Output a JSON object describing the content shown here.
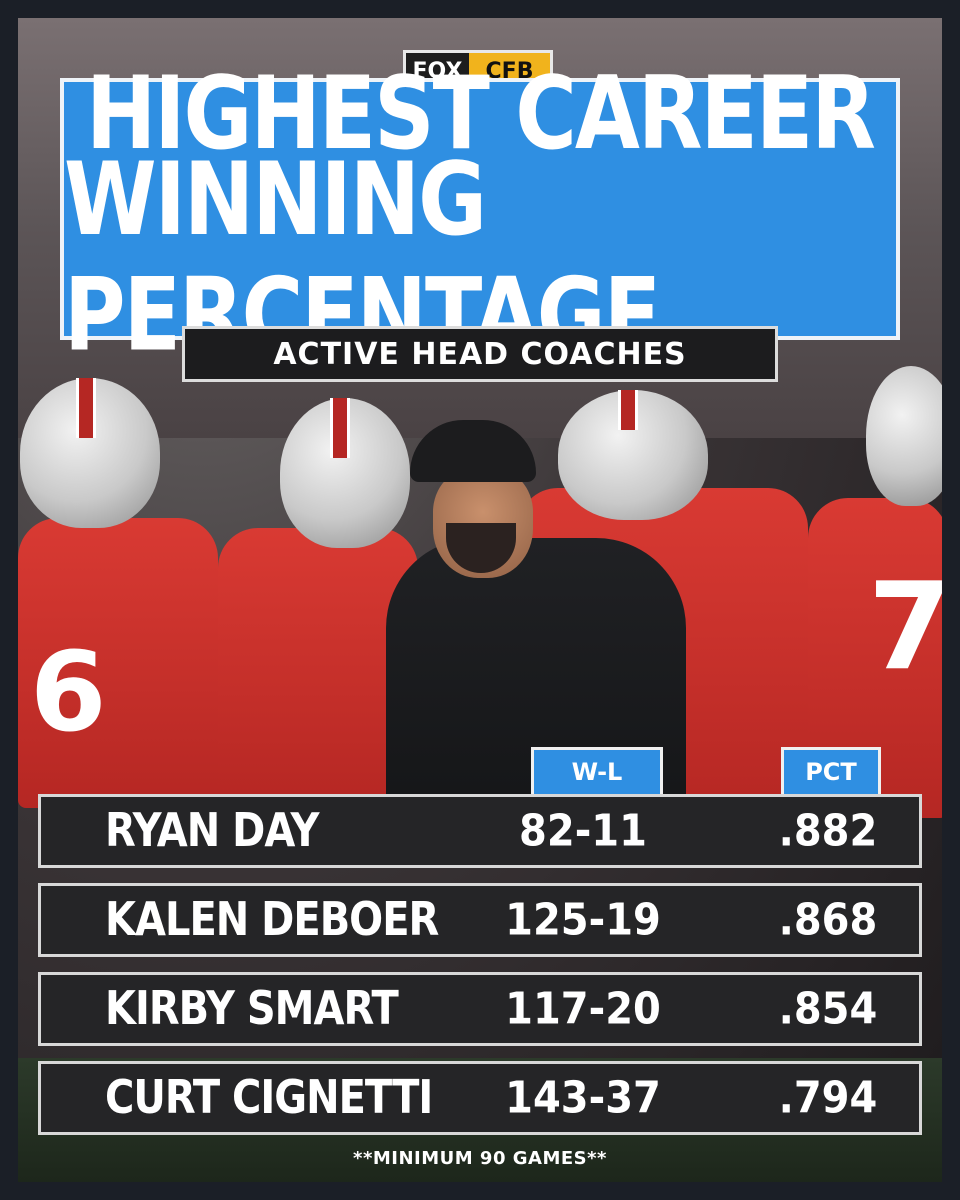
{
  "brand": {
    "fox": "FOX",
    "cfb": "CFB"
  },
  "header": {
    "title_line1": "HIGHEST CAREER",
    "title_line2": "WINNING PERCENTAGE",
    "subtitle": "ACTIVE HEAD COACHES"
  },
  "table": {
    "columns": {
      "wl": "W-L",
      "pct": "PCT"
    },
    "rows": [
      {
        "name": "RYAN DAY",
        "wl": "82-11",
        "pct": ".882"
      },
      {
        "name": "KALEN DEBOER",
        "wl": "125-19",
        "pct": ".868"
      },
      {
        "name": "KIRBY SMART",
        "wl": "117-20",
        "pct": ".854"
      },
      {
        "name": "CURT CIGNETTI",
        "wl": "143-37",
        "pct": ".794"
      }
    ]
  },
  "footnote": "**MINIMUM 90 GAMES**",
  "colors": {
    "accent": "#2f8fe2",
    "jersey": "#d93a33",
    "panel": "#252527"
  }
}
